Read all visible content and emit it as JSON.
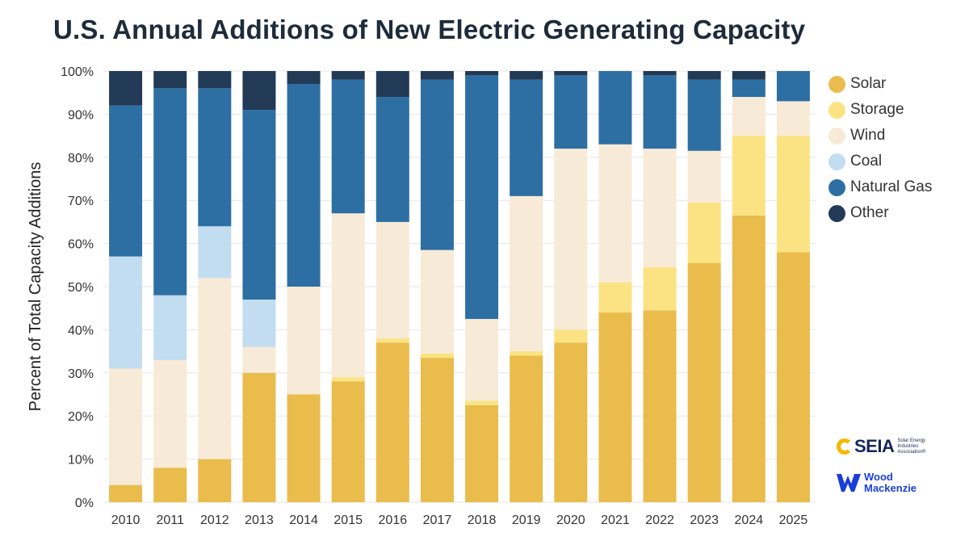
{
  "title": "U.S. Annual Additions of New Electric Generating Capacity",
  "colors": {
    "Solar": "#e9bc4c",
    "Storage": "#fbe383",
    "Wind": "#f7ead7",
    "Coal": "#c2dcf0",
    "Natural Gas": "#2d6fa3",
    "Other": "#223a56",
    "grid": "#e6e6e6",
    "axis_text": "#333333"
  },
  "legend": [
    {
      "label": "Solar",
      "color": "#e9bc4c"
    },
    {
      "label": "Storage",
      "color": "#fbe383"
    },
    {
      "label": "Wind",
      "color": "#f7ead7"
    },
    {
      "label": "Coal",
      "color": "#c2dcf0"
    },
    {
      "label": "Natural Gas",
      "color": "#2d6fa3"
    },
    {
      "label": "Other",
      "color": "#223a56"
    }
  ],
  "logos": {
    "seia": {
      "name": "SEIA",
      "sub": "Solar Energy Industries Association®"
    },
    "wood_mackenzie": {
      "line1": "Wood",
      "line2": "Mackenzie"
    }
  },
  "chart_data": {
    "type": "bar",
    "stacked": true,
    "title": "U.S. Annual Additions of New Electric Generating Capacity",
    "xlabel": "",
    "ylabel": "Percent of Total Capacity Additions",
    "ylim": [
      0,
      100
    ],
    "yticks": [
      0,
      10,
      20,
      30,
      40,
      50,
      60,
      70,
      80,
      90,
      100
    ],
    "ytick_labels": [
      "0%",
      "10%",
      "20%",
      "30%",
      "40%",
      "50%",
      "60%",
      "70%",
      "80%",
      "90%",
      "100%"
    ],
    "grid": true,
    "legend_position": "right",
    "categories": [
      "2010",
      "2011",
      "2012",
      "2013",
      "2014",
      "2015",
      "2016",
      "2017",
      "2018",
      "2019",
      "2020",
      "2021",
      "2022",
      "2023",
      "2024",
      "2025"
    ],
    "series": [
      {
        "name": "Solar",
        "values": [
          4,
          8,
          10,
          30,
          25,
          28,
          37,
          33.5,
          22.5,
          34,
          37,
          44,
          44.5,
          55.5,
          66.5,
          58
        ]
      },
      {
        "name": "Storage",
        "values": [
          0,
          0,
          0,
          0,
          0,
          1,
          1,
          1,
          1,
          1,
          3,
          7,
          10,
          14,
          18.5,
          27
        ]
      },
      {
        "name": "Wind",
        "values": [
          27,
          25,
          42,
          6,
          25,
          38,
          27,
          24,
          19,
          36,
          42,
          32,
          27.5,
          12,
          9,
          8
        ]
      },
      {
        "name": "Coal",
        "values": [
          26,
          15,
          12,
          11,
          0,
          0,
          0,
          0,
          0,
          0,
          0,
          0,
          0,
          0,
          0,
          0
        ]
      },
      {
        "name": "Natural Gas",
        "values": [
          35,
          48,
          32,
          44,
          47,
          31,
          29,
          39.5,
          56.5,
          27,
          17,
          17,
          17,
          16.5,
          4,
          7
        ]
      },
      {
        "name": "Other",
        "values": [
          8,
          4,
          4,
          9,
          3,
          2,
          6,
          2,
          1,
          2,
          1,
          0,
          1,
          2,
          2,
          0
        ]
      }
    ]
  }
}
